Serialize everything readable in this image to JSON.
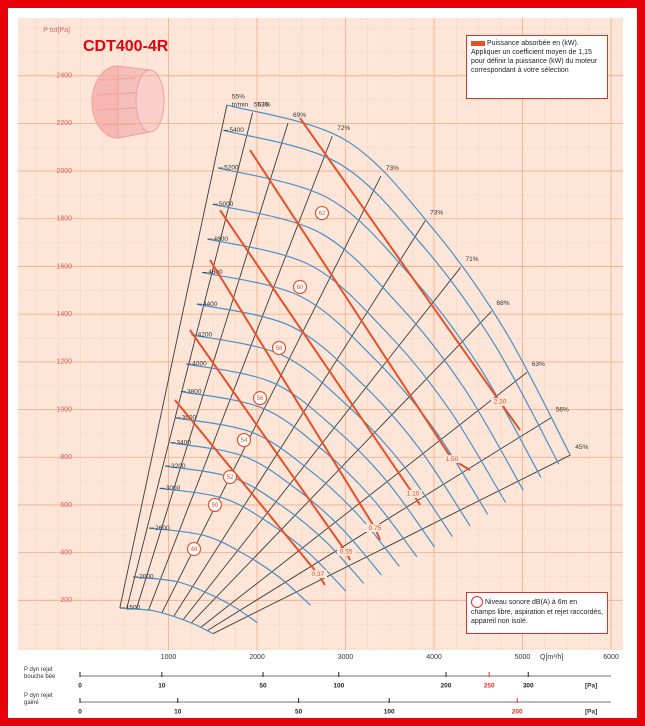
{
  "chart_data": {
    "type": "line",
    "title": "CDT400-4R",
    "y_label": "P tot[Pa]",
    "x_label": "Q[m³/h]",
    "speed_unit": "tr/min",
    "xlim": [
      0,
      6000
    ],
    "xticks": [
      1000,
      2000,
      3000,
      4000,
      5000,
      6000
    ],
    "ylim": [
      0,
      2600
    ],
    "yticks": [
      200,
      400,
      600,
      800,
      1000,
      1200,
      1400,
      1600,
      1800,
      2000,
      2200,
      2400
    ],
    "grid": true,
    "series": [
      {
        "name": "1500",
        "color": "#4a8fc7",
        "x": [
          450,
          814,
          1085,
          1302,
          1502
        ],
        "values": [
          168,
          157,
          129,
          98,
          60
        ]
      },
      {
        "name": "2000",
        "color": "#4a8fc7",
        "x": [
          600,
          1085,
          1447,
          1736,
          2004
        ],
        "values": [
          298,
          279,
          229,
          174,
          106
        ]
      },
      {
        "name": "2600",
        "color": "#4a8fc7",
        "x": [
          781,
          1411,
          1881,
          2257,
          2605
        ],
        "values": [
          503,
          471,
          388,
          295,
          179
        ]
      },
      {
        "name": "3000",
        "color": "#4a8fc7",
        "x": [
          901,
          1628,
          2170,
          2604,
          3005
        ],
        "values": [
          670,
          627,
          516,
          392,
          238
        ]
      },
      {
        "name": "3200",
        "color": "#4a8fc7",
        "x": [
          961,
          1736,
          2315,
          2778,
          3206
        ],
        "values": [
          763,
          713,
          587,
          446,
          271
        ]
      },
      {
        "name": "3400",
        "color": "#4a8fc7",
        "x": [
          1021,
          1844,
          2459,
          2951,
          3406
        ],
        "values": [
          861,
          805,
          663,
          504,
          306
        ]
      },
      {
        "name": "3600",
        "color": "#4a8fc7",
        "x": [
          1081,
          1953,
          2604,
          3125,
          3607
        ],
        "values": [
          965,
          903,
          743,
          565,
          343
        ]
      },
      {
        "name": "3800",
        "color": "#4a8fc7",
        "x": [
          1141,
          2062,
          2749,
          3299,
          3807
        ],
        "values": [
          1075,
          1006,
          828,
          629,
          382
        ]
      },
      {
        "name": "4000",
        "color": "#4a8fc7",
        "x": [
          1201,
          2170,
          2893,
          3472,
          4007
        ],
        "values": [
          1191,
          1114,
          917,
          697,
          423
        ]
      },
      {
        "name": "4200",
        "color": "#4a8fc7",
        "x": [
          1261,
          2279,
          3038,
          3646,
          4208
        ],
        "values": [
          1313,
          1229,
          1011,
          769,
          467
        ]
      },
      {
        "name": "4400",
        "color": "#4a8fc7",
        "x": [
          1321,
          2387,
          3183,
          3819,
          4408
        ],
        "values": [
          1442,
          1349,
          1110,
          844,
          512
        ]
      },
      {
        "name": "4600",
        "color": "#4a8fc7",
        "x": [
          1381,
          2495,
          3327,
          3993,
          4608
        ],
        "values": [
          1575,
          1474,
          1213,
          922,
          560
        ]
      },
      {
        "name": "4800",
        "color": "#4a8fc7",
        "x": [
          1441,
          2604,
          3472,
          4166,
          4809
        ],
        "values": [
          1715,
          1605,
          1321,
          1004,
          610
        ]
      },
      {
        "name": "5000",
        "color": "#4a8fc7",
        "x": [
          1501,
          2713,
          3617,
          4340,
          5009
        ],
        "values": [
          1861,
          1741,
          1433,
          1090,
          661
        ]
      },
      {
        "name": "5200",
        "color": "#4a8fc7",
        "x": [
          1561,
          2821,
          3761,
          4513,
          5209
        ],
        "values": [
          2013,
          1883,
          1550,
          1179,
          715
        ]
      },
      {
        "name": "5400",
        "color": "#4a8fc7",
        "x": [
          1621,
          2930,
          3906,
          4687,
          5410
        ],
        "values": [
          2171,
          2031,
          1672,
          1271,
          771
        ]
      },
      {
        "name": "5530",
        "color": "#4a8fc7",
        "x": [
          1660,
          3000,
          4000,
          4800,
          5540
        ],
        "values": [
          2277,
          2130,
          1753,
          1333,
          809
        ]
      }
    ],
    "efficiency_color": "#3a3a3a",
    "efficiency_lines": [
      {
        "name": "55%",
        "x": [
          450,
          1660
        ],
        "values": [
          168,
          2277
        ]
      },
      {
        "name": "63%",
        "x": [
          529,
          1950
        ],
        "values": [
          167,
          2245
        ]
      },
      {
        "name": "69%",
        "x": [
          637,
          2350
        ],
        "values": [
          164,
          2201
        ]
      },
      {
        "name": "72%",
        "x": [
          773,
          2850
        ],
        "values": [
          158,
          2146
        ]
      },
      {
        "name": "73%",
        "x": [
          922,
          3400
        ],
        "values": [
          145,
          1979
        ]
      },
      {
        "name": "73%",
        "x": [
          1058,
          3900
        ],
        "values": [
          132,
          1791
        ]
      },
      {
        "name": "71%",
        "x": [
          1166,
          4300
        ],
        "values": [
          119,
          1596
        ]
      },
      {
        "name": "68%",
        "x": [
          1261,
          4650
        ],
        "values": [
          106,
          1412
        ]
      },
      {
        "name": "63%",
        "x": [
          1370,
          5050
        ],
        "values": [
          88,
          1156
        ]
      },
      {
        "name": "56%",
        "x": [
          1443,
          5320
        ],
        "values": [
          74,
          965
        ]
      },
      {
        "name": "45%",
        "x": [
          1502,
          5540
        ],
        "values": [
          60,
          809
        ]
      }
    ],
    "power_color": "#e8502a",
    "power_lines": [
      {
        "name": "2.20",
        "x": [
          2486,
          4746,
          4972
        ],
        "values": [
          2222,
          1032,
          914
        ]
      },
      {
        "name": "1.50",
        "x": [
          1921,
          4203,
          4407
        ],
        "values": [
          2088,
          792,
          746
        ]
      },
      {
        "name": "1.10",
        "x": [
          1582,
          3763,
          3842
        ],
        "values": [
          1836,
          646,
          600
        ]
      },
      {
        "name": "0.75",
        "x": [
          1469,
          3333,
          3390
        ],
        "values": [
          1627,
          503,
          453
        ]
      },
      {
        "name": "0.55",
        "x": [
          1243,
          3006,
          3051
        ],
        "values": [
          1333,
          403,
          369
        ]
      },
      {
        "name": "0.37",
        "x": [
          1073,
          2689,
          2768
        ],
        "values": [
          1040,
          310,
          264
        ]
      }
    ],
    "noise_color": "#e8502a",
    "noise_levels": [
      {
        "name": "62",
        "x": 2734,
        "value": 1824
      },
      {
        "name": "60",
        "x": 2486,
        "value": 1514
      },
      {
        "name": "58",
        "x": 2249,
        "value": 1258
      },
      {
        "name": "56",
        "x": 2034,
        "value": 1048
      },
      {
        "name": "54",
        "x": 1853,
        "value": 872
      },
      {
        "name": "52",
        "x": 1695,
        "value": 717
      },
      {
        "name": "50",
        "x": 1525,
        "value": 600
      },
      {
        "name": "48",
        "x": 1288,
        "value": 415
      }
    ],
    "power_legend": "Puissance absorbée en (kW). Appliquer un coefficient moyen de 1,15 pour définir la puissance (kW) du moteur correspondant à votre sélection",
    "noise_legend": "Niveau sonore dB(A) à 6m en champs libre, aspiration et rejet raccordés, appareil non isolé.",
    "pdyn_scales": [
      {
        "label": "P dyn rejet bouche bée",
        "unit": "[Pa]",
        "scale": "sqrt",
        "lim": [
          0,
          421
        ],
        "ticks": [
          0,
          10,
          50,
          100,
          200,
          250,
          300
        ],
        "tick_colors": [
          "#222",
          "#222",
          "#222",
          "#222",
          "#222",
          "#e8302a",
          "#222"
        ]
      },
      {
        "label": "P dyn rejet gainé",
        "unit": "[Pa]",
        "scale": "sqrt",
        "lim": [
          0,
          295
        ],
        "ticks": [
          0,
          10,
          50,
          100,
          200
        ],
        "tick_colors": [
          "#222",
          "#222",
          "#222",
          "#222",
          "#e8302a"
        ]
      }
    ]
  }
}
